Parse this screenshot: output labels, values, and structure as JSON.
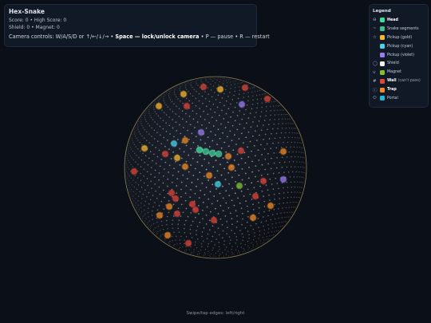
{
  "hud": {
    "title": "Hex-Snake",
    "score_line": "Score: 0 • High Score: 0",
    "status_line": "Shield: 0 • Magnet: 0",
    "controls": [
      "Camera controls: W/A/S/D or ↑/←/↓/→ • ",
      "Space — lock/unlock camera",
      " • P — pause • R — restart"
    ]
  },
  "legend": {
    "title": "Legend",
    "items": [
      {
        "icon": "⊖",
        "label": "Head",
        "color": "#3ddc97",
        "bold": true
      },
      {
        "icon": "~",
        "label": "Snake segments",
        "color": "#34c38f"
      },
      {
        "icon": "☆",
        "label": "Pickup (gold)",
        "color": "#f5b82e"
      },
      {
        "icon": "",
        "label": "Pickup (cyan)",
        "color": "#49d4e8"
      },
      {
        "icon": "",
        "label": "Pickup (violet)",
        "color": "#9b7cf0"
      },
      {
        "icon": "◯",
        "label": "Shield",
        "color": "#f2f2f2"
      },
      {
        "icon": "∪",
        "label": "Magnet",
        "color": "#7ec234"
      },
      {
        "icon": "#",
        "label": "Wall",
        "note": "(can't pass)",
        "color": "#e0443a",
        "bold": true
      },
      {
        "icon": "ⓘ",
        "label": "Trap",
        "color": "#f08a24",
        "bold": true
      },
      {
        "icon": "⬭",
        "label": "Portal",
        "color": "#27b7d6"
      }
    ]
  },
  "footer": "Swipe/tap edges: left/right"
}
